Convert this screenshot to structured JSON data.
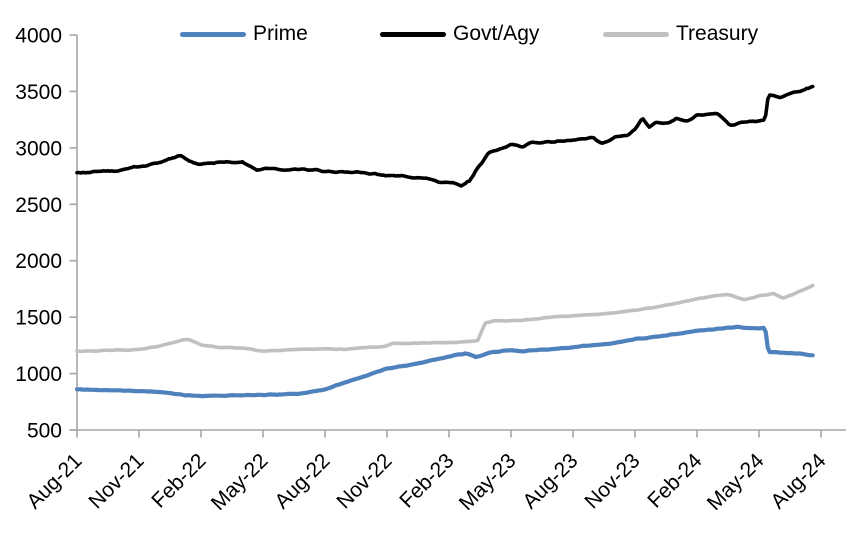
{
  "chart_data": {
    "type": "line",
    "title": "",
    "xlabel": "",
    "ylabel": "",
    "x_axis": {
      "tick_labels": [
        "Aug-21",
        "Nov-21",
        "Feb-22",
        "May-22",
        "Aug-22",
        "Nov-22",
        "Feb-23",
        "May-23",
        "Aug-23",
        "Nov-23",
        "Feb-24",
        "May-24",
        "Aug-24"
      ],
      "tick_positions_months": [
        0,
        3,
        6,
        9,
        12,
        15,
        18,
        21,
        24,
        27,
        30,
        33,
        36
      ],
      "label_rotation_deg": -45
    },
    "y_axis": {
      "ticks": [
        500,
        1000,
        1500,
        2000,
        2500,
        3000,
        3500,
        4000
      ],
      "tick_labels": [
        "500",
        "1000",
        "1500",
        "2000",
        "2500",
        "3000",
        "3500",
        "4000"
      ],
      "range": [
        500,
        4000
      ]
    },
    "grid": false,
    "legend": {
      "position": "top",
      "entries": [
        "Prime",
        "Govt/Agy",
        "Treasury"
      ]
    },
    "axis_color": "#a6a6a6",
    "series": [
      {
        "name": "Prime",
        "color": "#4f81bd",
        "points": [
          [
            0,
            865
          ],
          [
            1,
            852
          ],
          [
            2,
            848
          ],
          [
            3,
            845
          ],
          [
            4,
            832
          ],
          [
            5,
            815
          ],
          [
            6,
            803
          ],
          [
            7,
            802
          ],
          [
            8,
            808
          ],
          [
            9,
            812
          ],
          [
            10,
            818
          ],
          [
            11,
            832
          ],
          [
            12,
            858
          ],
          [
            13,
            920
          ],
          [
            14,
            978
          ],
          [
            15,
            1045
          ],
          [
            16,
            1072
          ],
          [
            17,
            1112
          ],
          [
            18,
            1150
          ],
          [
            18.8,
            1180
          ],
          [
            19.3,
            1145
          ],
          [
            20,
            1185
          ],
          [
            21,
            1205
          ],
          [
            21.6,
            1192
          ],
          [
            22,
            1205
          ],
          [
            23,
            1215
          ],
          [
            24,
            1235
          ],
          [
            25,
            1252
          ],
          [
            26,
            1268
          ],
          [
            27,
            1305
          ],
          [
            28,
            1325
          ],
          [
            29,
            1352
          ],
          [
            30,
            1382
          ],
          [
            31,
            1398
          ],
          [
            32,
            1412
          ],
          [
            32.6,
            1398
          ],
          [
            33.3,
            1402
          ],
          [
            33.45,
            1190
          ],
          [
            34.3,
            1183
          ],
          [
            35,
            1178
          ],
          [
            35.6,
            1162
          ]
        ]
      },
      {
        "name": "Govt/Agy",
        "color": "#000000",
        "points": [
          [
            0,
            2780
          ],
          [
            1,
            2790
          ],
          [
            2,
            2800
          ],
          [
            3,
            2830
          ],
          [
            4,
            2872
          ],
          [
            5,
            2935
          ],
          [
            5.6,
            2878
          ],
          [
            6,
            2862
          ],
          [
            7,
            2878
          ],
          [
            8,
            2868
          ],
          [
            8.7,
            2798
          ],
          [
            9.3,
            2815
          ],
          [
            10,
            2808
          ],
          [
            11,
            2815
          ],
          [
            12,
            2798
          ],
          [
            13,
            2788
          ],
          [
            14,
            2772
          ],
          [
            15,
            2752
          ],
          [
            16,
            2748
          ],
          [
            17,
            2728
          ],
          [
            17.6,
            2698
          ],
          [
            18.2,
            2688
          ],
          [
            18.6,
            2662
          ],
          [
            19,
            2705
          ],
          [
            19.4,
            2820
          ],
          [
            19.9,
            2945
          ],
          [
            20.6,
            3002
          ],
          [
            21,
            3030
          ],
          [
            21.6,
            3008
          ],
          [
            22,
            3042
          ],
          [
            23,
            3052
          ],
          [
            24,
            3072
          ],
          [
            25,
            3095
          ],
          [
            25.4,
            3040
          ],
          [
            26,
            3095
          ],
          [
            26.6,
            3115
          ],
          [
            27,
            3162
          ],
          [
            27.35,
            3262
          ],
          [
            27.7,
            3182
          ],
          [
            28,
            3232
          ],
          [
            28.6,
            3212
          ],
          [
            29,
            3252
          ],
          [
            29.5,
            3232
          ],
          [
            30,
            3292
          ],
          [
            31,
            3312
          ],
          [
            31.6,
            3202
          ],
          [
            32.2,
            3232
          ],
          [
            33,
            3240
          ],
          [
            33.3,
            3252
          ],
          [
            33.45,
            3465
          ],
          [
            34,
            3452
          ],
          [
            34.6,
            3492
          ],
          [
            35,
            3508
          ],
          [
            35.6,
            3540
          ]
        ]
      },
      {
        "name": "Treasury",
        "color": "#c0c0c0",
        "points": [
          [
            0,
            1200
          ],
          [
            1,
            1200
          ],
          [
            2,
            1205
          ],
          [
            3,
            1212
          ],
          [
            4,
            1242
          ],
          [
            5,
            1292
          ],
          [
            5.4,
            1302
          ],
          [
            6,
            1252
          ],
          [
            7,
            1232
          ],
          [
            8,
            1225
          ],
          [
            9,
            1200
          ],
          [
            10,
            1210
          ],
          [
            11,
            1215
          ],
          [
            12,
            1220
          ],
          [
            13,
            1215
          ],
          [
            14,
            1228
          ],
          [
            14.9,
            1238
          ],
          [
            15.3,
            1270
          ],
          [
            16,
            1265
          ],
          [
            17,
            1270
          ],
          [
            18,
            1275
          ],
          [
            19,
            1282
          ],
          [
            19.4,
            1292
          ],
          [
            19.75,
            1452
          ],
          [
            20.2,
            1468
          ],
          [
            21,
            1470
          ],
          [
            22,
            1482
          ],
          [
            23,
            1500
          ],
          [
            24,
            1512
          ],
          [
            25,
            1525
          ],
          [
            26,
            1542
          ],
          [
            27,
            1562
          ],
          [
            28,
            1590
          ],
          [
            29,
            1620
          ],
          [
            30,
            1660
          ],
          [
            31,
            1692
          ],
          [
            31.5,
            1700
          ],
          [
            32.3,
            1655
          ],
          [
            33,
            1688
          ],
          [
            33.7,
            1712
          ],
          [
            34.15,
            1672
          ],
          [
            34.6,
            1702
          ],
          [
            35,
            1732
          ],
          [
            35.6,
            1778
          ]
        ]
      }
    ]
  }
}
